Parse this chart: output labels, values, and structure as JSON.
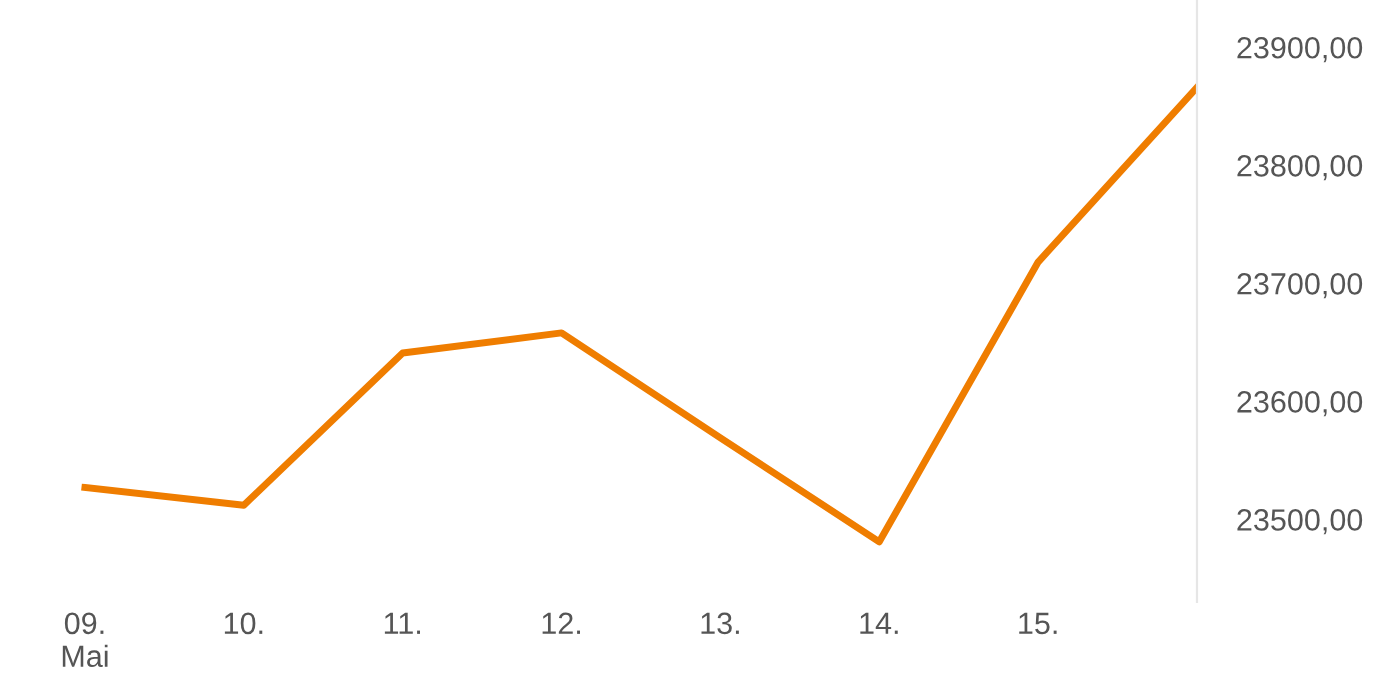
{
  "chart_data": {
    "type": "line",
    "categories": [
      "09.\nMai",
      "10.",
      "11.",
      "12.",
      "13.",
      "14.",
      "15.",
      null
    ],
    "series": [
      {
        "color": "#ef7d00",
        "values": [
          23527,
          23512,
          23641,
          23658,
          23569,
          23481,
          23718,
          23866
        ]
      }
    ],
    "ylim": [
      23430,
      23940
    ],
    "yticks": [
      {
        "value": 23500,
        "label": "23500,00"
      },
      {
        "value": 23600,
        "label": "23600,00"
      },
      {
        "value": 23700,
        "label": "23700,00"
      },
      {
        "value": 23800,
        "label": "23800,00"
      },
      {
        "value": 23900,
        "label": "23900,00"
      }
    ],
    "grid": false,
    "legend": false,
    "marker": "none",
    "line_style": "solid"
  }
}
